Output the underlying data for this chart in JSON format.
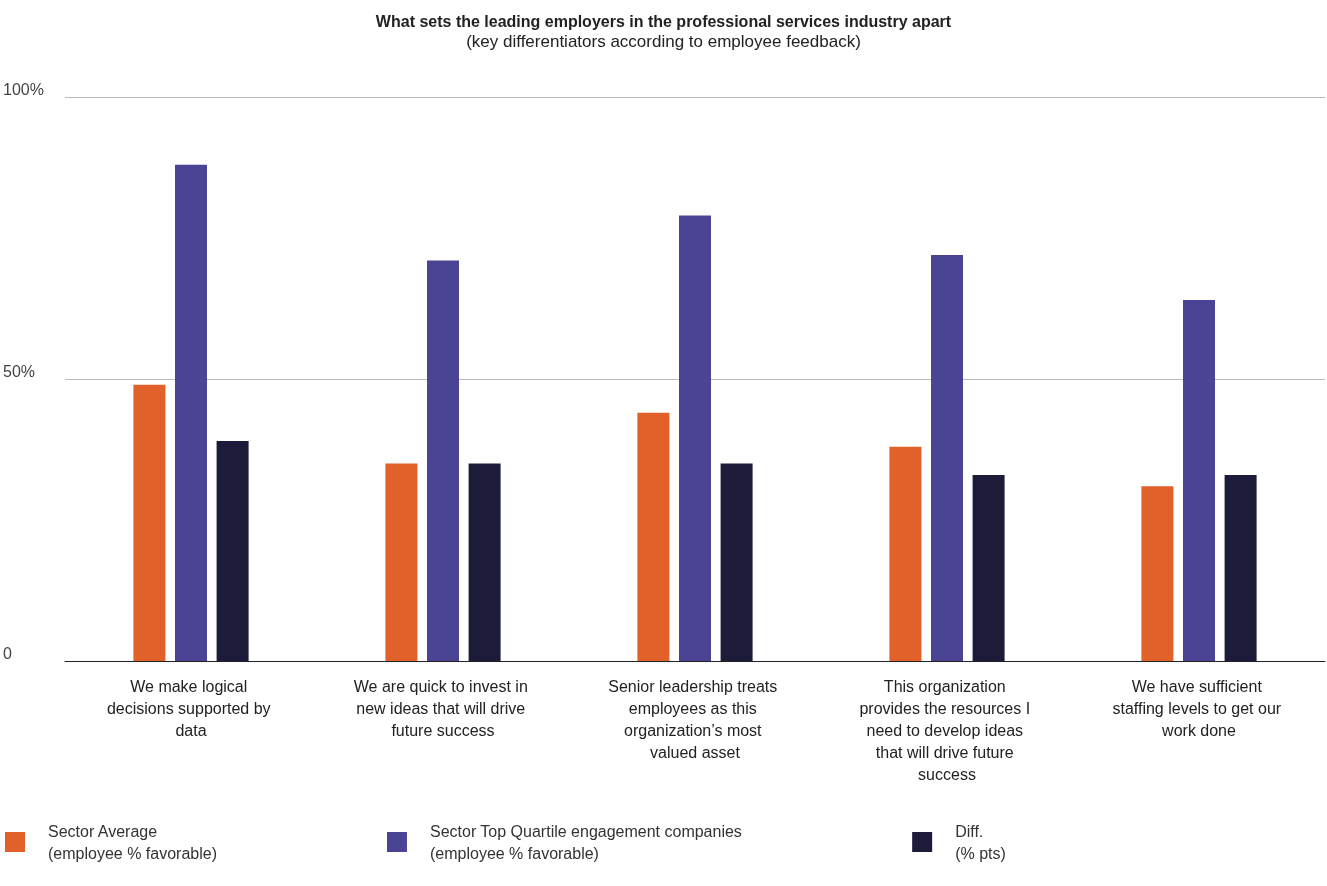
{
  "chart_data": {
    "type": "bar",
    "title": "What sets the leading employers in the professional services industry apart",
    "subtitle": "(key differentiators according to employee feedback)",
    "categories": [
      "We make logical decisions supported by data",
      "We are quick to invest in new ideas that will drive future success",
      "Senior leadership treats employees as this organization’s most valued asset",
      "This organization provides the resources I need to develop ideas that will drive future success",
      "We have sufficient staffing levels to get our work done"
    ],
    "series": [
      {
        "name": "Sector Average (employee % favorable)",
        "color": "#e2602a",
        "values": [
          49,
          35,
          44,
          38,
          31
        ]
      },
      {
        "name": "Sector Top Quartile engagement companies (employee % favorable)",
        "color": "#4b4394",
        "values": [
          88,
          71,
          79,
          72,
          64
        ]
      },
      {
        "name": "Diff. (% pts)",
        "color": "#1c1c3a",
        "values": [
          39,
          35,
          35,
          33,
          33
        ]
      }
    ],
    "ylim": [
      0,
      100
    ],
    "yticks": [
      {
        "value": 0,
        "label": "0"
      },
      {
        "value": 50,
        "label": "50%"
      },
      {
        "value": 100,
        "label": "100%"
      }
    ],
    "grid": "y",
    "legend": "bottom"
  }
}
